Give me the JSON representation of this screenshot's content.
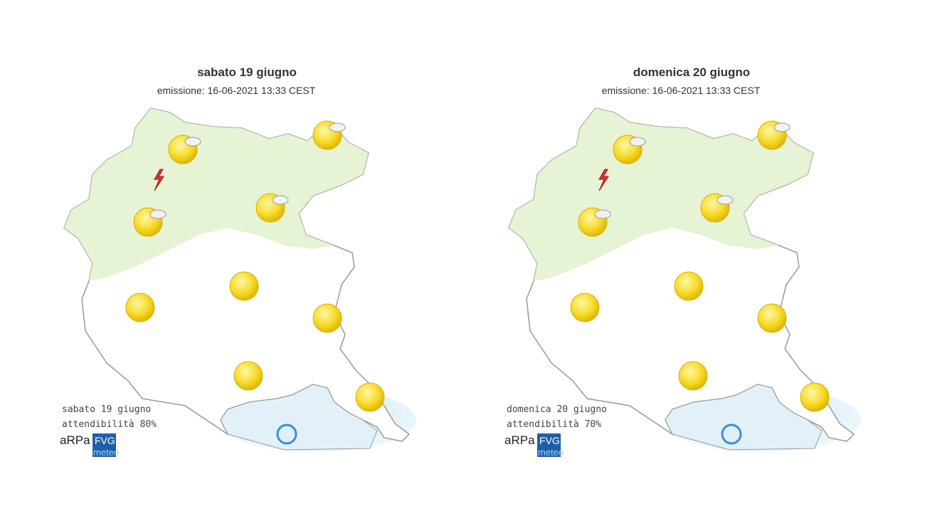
{
  "panels": [
    {
      "title": "sabato 19 giugno",
      "emission": "emissione: 16-06-2021 13:33 CEST",
      "footer_day": "sabato 19 giugno",
      "reliability": "attendibilità 80%",
      "logo": {
        "arpa": "aRPa",
        "fvg": "FVG",
        "meteo": "meteo"
      }
    },
    {
      "title": "domenica 20 giugno",
      "emission": "emissione: 16-06-2021 13:33 CEST",
      "footer_day": "domenica 20 giugno",
      "reliability": "attendibilità 70%",
      "logo": {
        "arpa": "aRPa",
        "fvg": "FVG",
        "meteo": "meteo"
      }
    }
  ]
}
